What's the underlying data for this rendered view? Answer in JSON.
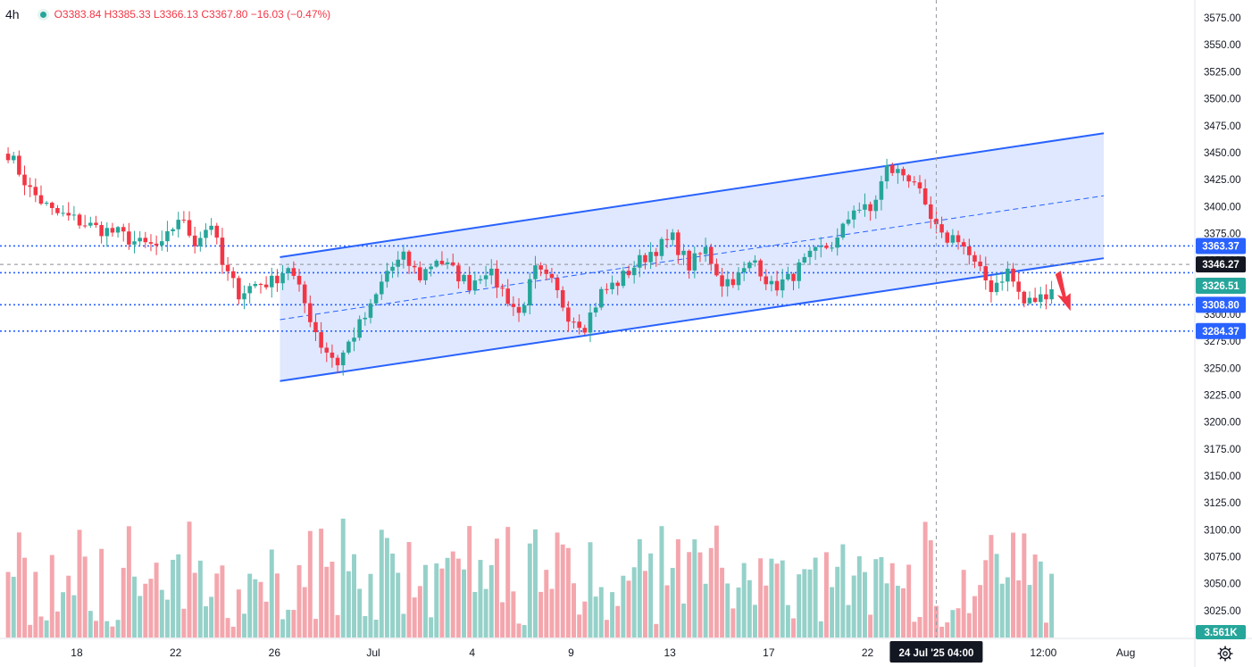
{
  "legend": {
    "timeframe": "4h",
    "ohlc": "O3383.84 H3385.33 L3366.13 C3367.80 −16.03 (−0.47%)"
  },
  "colors": {
    "up": "#26a69a",
    "down": "#f23645",
    "up_vol": "#95d1c9",
    "down_vol": "#f4a6ad",
    "channel_line": "#2962ff",
    "channel_fill": "#dbe6fe",
    "level_dotted": "#2962ff",
    "crosshair": "#9598a1",
    "badge_dark": "#131722",
    "badge_green": "#26a69a",
    "badge_blue": "#2962ff",
    "arrow": "#f23645"
  },
  "chart_data": {
    "type": "candlestick",
    "timeframe": "4h",
    "y_axis": {
      "range": [
        3000,
        3585
      ],
      "ticks": [
        3025,
        3050,
        3075,
        3100,
        3125,
        3150,
        3175,
        3200,
        3225,
        3250,
        3275,
        3300,
        3325,
        3350,
        3375,
        3400,
        3425,
        3450,
        3475,
        3500,
        3525,
        3550,
        3575
      ],
      "tick_labels": [
        "3025.00",
        "3050.00",
        "3075.00",
        "3100.00",
        "3125.00",
        "3150.00",
        "3175.00",
        "3200.00",
        "3225.00",
        "3250.00",
        "3275.00",
        "3300.00",
        "3325.00",
        "3350.00",
        "3375.00",
        "3400.00",
        "3425.00",
        "3450.00",
        "3475.00",
        "3500.00",
        "3525.00",
        "3550.00",
        "3575.00"
      ]
    },
    "x_axis": {
      "tick_labels": [
        "18",
        "22",
        "26",
        "Jul",
        "4",
        "9",
        "13",
        "17",
        "22",
        "12:00",
        "Aug"
      ],
      "tick_bars": [
        13,
        31,
        49,
        67,
        85,
        103,
        121,
        139,
        157,
        189,
        204
      ],
      "crosshair_label": "24 Jul '25   04:00",
      "crosshair_bar": 169
    },
    "price_labels": [
      {
        "value": 3363.37,
        "text": "3363.37",
        "style": "blue"
      },
      {
        "value": 3346.27,
        "text": "3346.27",
        "style": "dark"
      },
      {
        "value": 3326.51,
        "text": "3326.51",
        "style": "green"
      },
      {
        "value": 3308.8,
        "text": "3308.80",
        "style": "blue"
      },
      {
        "value": 3284.37,
        "text": "3284.37",
        "style": "blue"
      }
    ],
    "horizontal_levels": [
      3363.37,
      3338.5,
      3308.8,
      3284.37
    ],
    "dashed_level": 3346.27,
    "volume_label": "3.561K",
    "channel": {
      "start_bar": 50,
      "end_bar": 200,
      "upper": [
        3353,
        3468
      ],
      "lower": [
        3238,
        3352
      ],
      "middle": [
        3295,
        3410
      ]
    },
    "arrow": {
      "bar": 192,
      "from": 3337,
      "to": 3308
    },
    "waypoints": [
      [
        0,
        3450
      ],
      [
        4,
        3415
      ],
      [
        8,
        3395
      ],
      [
        12,
        3388
      ],
      [
        16,
        3380
      ],
      [
        20,
        3375
      ],
      [
        24,
        3365
      ],
      [
        28,
        3362
      ],
      [
        31,
        3390
      ],
      [
        34,
        3368
      ],
      [
        37,
        3385
      ],
      [
        39,
        3345
      ],
      [
        42,
        3320
      ],
      [
        45,
        3328
      ],
      [
        48,
        3330
      ],
      [
        51,
        3345
      ],
      [
        54,
        3310
      ],
      [
        57,
        3272
      ],
      [
        60,
        3255
      ],
      [
        63,
        3282
      ],
      [
        66,
        3305
      ],
      [
        69,
        3340
      ],
      [
        72,
        3352
      ],
      [
        75,
        3335
      ],
      [
        78,
        3352
      ],
      [
        81,
        3340
      ],
      [
        84,
        3328
      ],
      [
        87,
        3342
      ],
      [
        90,
        3322
      ],
      [
        93,
        3300
      ],
      [
        96,
        3340
      ],
      [
        99,
        3328
      ],
      [
        102,
        3300
      ],
      [
        105,
        3290
      ],
      [
        108,
        3320
      ],
      [
        111,
        3330
      ],
      [
        114,
        3345
      ],
      [
        117,
        3358
      ],
      [
        121,
        3370
      ],
      [
        124,
        3345
      ],
      [
        127,
        3360
      ],
      [
        130,
        3330
      ],
      [
        133,
        3335
      ],
      [
        136,
        3350
      ],
      [
        139,
        3325
      ],
      [
        142,
        3332
      ],
      [
        145,
        3348
      ],
      [
        148,
        3360
      ],
      [
        151,
        3368
      ],
      [
        154,
        3400
      ],
      [
        157,
        3395
      ],
      [
        160,
        3435
      ],
      [
        163,
        3430
      ],
      [
        165,
        3425
      ],
      [
        167,
        3395
      ],
      [
        170,
        3370
      ],
      [
        173,
        3372
      ],
      [
        176,
        3345
      ],
      [
        179,
        3325
      ],
      [
        182,
        3340
      ],
      [
        185,
        3310
      ],
      [
        188,
        3315
      ],
      [
        190,
        3326
      ]
    ],
    "candle_count": 191
  }
}
